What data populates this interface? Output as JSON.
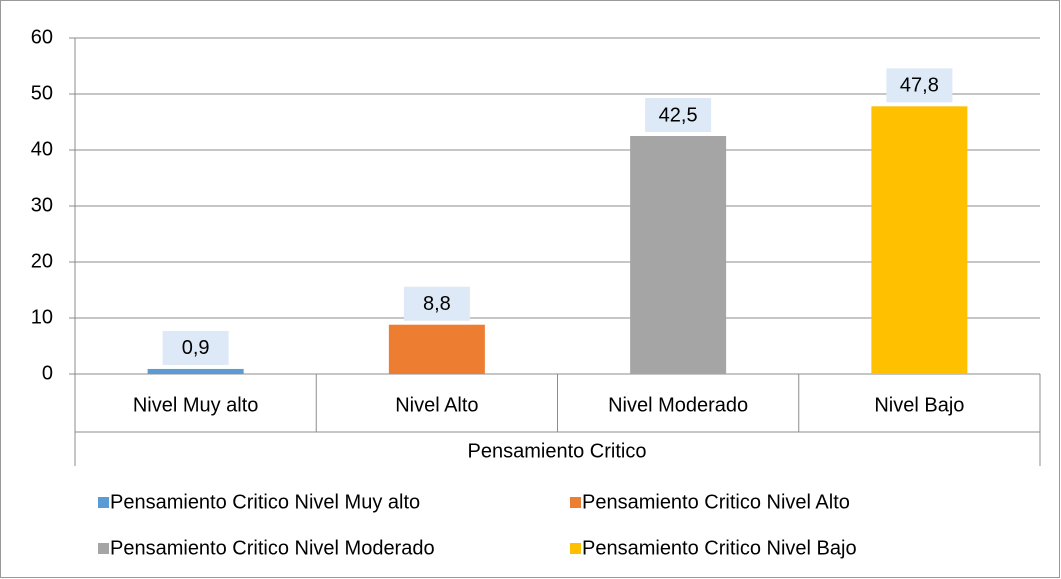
{
  "chart_data": {
    "type": "bar",
    "categories": [
      "Nivel Muy alto",
      "Nivel Alto",
      "Nivel Moderado",
      "Nivel Bajo"
    ],
    "group_label": "Pensamiento Critico",
    "values": [
      0.9,
      8.8,
      42.5,
      47.8
    ],
    "value_labels": [
      "0,9",
      "8,8",
      "42,5",
      "47,8"
    ],
    "colors": [
      "#5b9bd5",
      "#ed7d31",
      "#a5a5a5",
      "#ffc000"
    ],
    "legend": [
      "Pensamiento Critico Nivel Muy alto",
      "Pensamiento Critico Nivel Alto",
      "Pensamiento Critico Nivel Moderado",
      "Pensamiento Critico Nivel Bajo"
    ],
    "ylim": [
      0,
      60
    ],
    "yticks": [
      0,
      10,
      20,
      30,
      40,
      50,
      60
    ],
    "grid": true
  }
}
